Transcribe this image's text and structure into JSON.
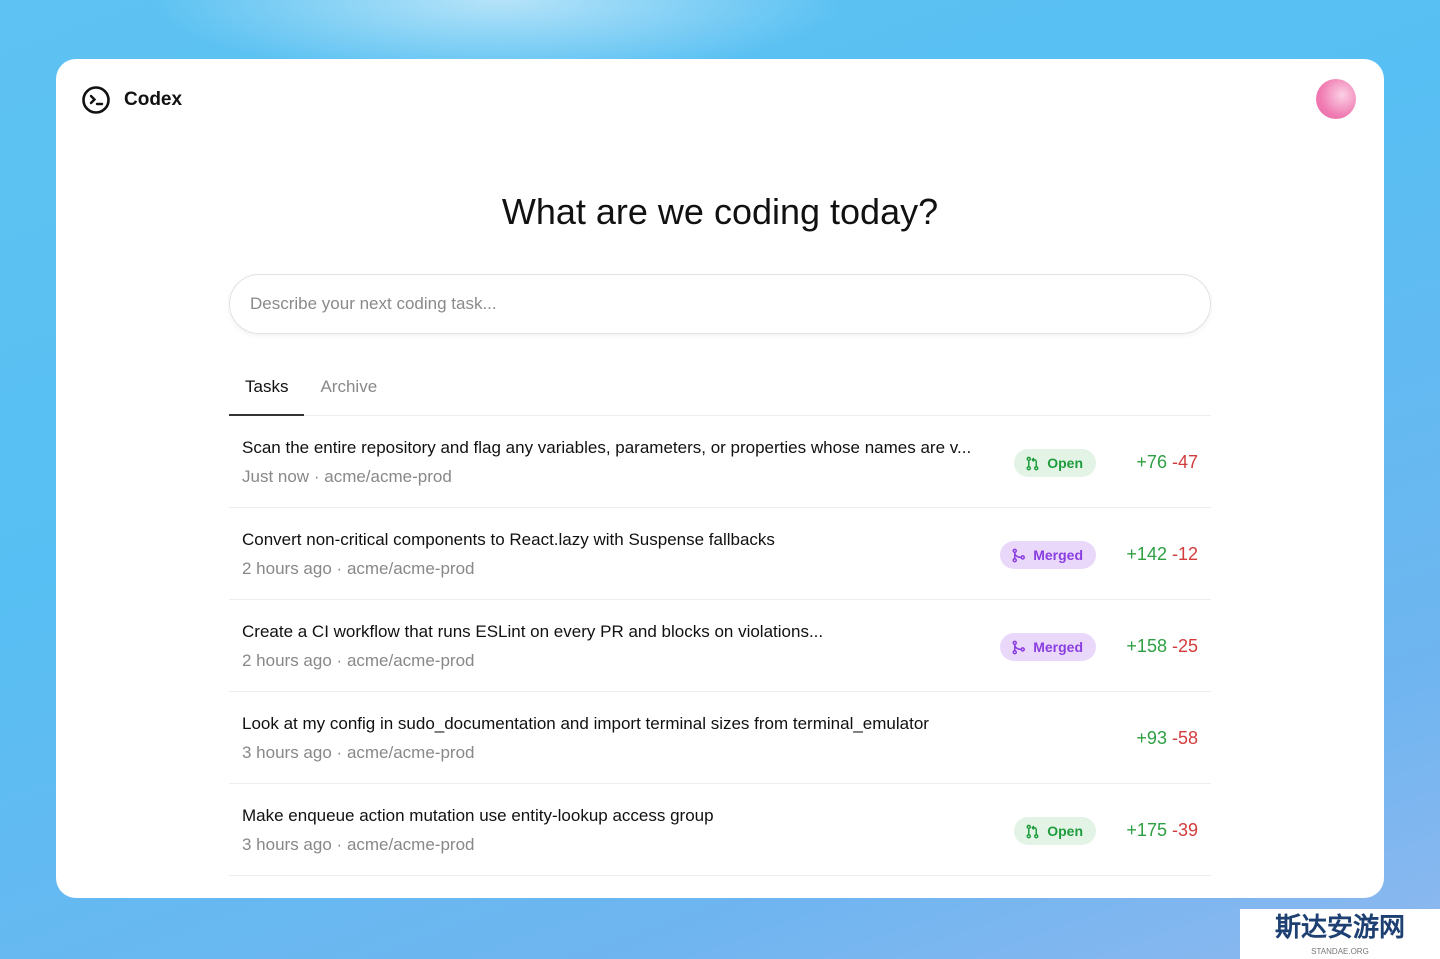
{
  "app": {
    "name": "Codex"
  },
  "headline": "What are we coding today?",
  "prompt": {
    "placeholder": "Describe your next coding task..."
  },
  "tabs": [
    {
      "label": "Tasks",
      "active": true
    },
    {
      "label": "Archive",
      "active": false
    }
  ],
  "tasks": [
    {
      "title": "Scan the entire repository and flag any variables, parameters, or properties whose names are v...",
      "time": "Just now",
      "repo": "acme/acme-prod",
      "status": "Open",
      "additions": "+76",
      "deletions": "-47"
    },
    {
      "title": "Convert non-critical components to React.lazy with Suspense fallbacks",
      "time": "2 hours ago",
      "repo": "acme/acme-prod",
      "status": "Merged",
      "additions": "+142",
      "deletions": "-12"
    },
    {
      "title": "Create a CI workflow that runs ESLint on every PR and blocks on violations...",
      "time": "2 hours ago",
      "repo": "acme/acme-prod",
      "status": "Merged",
      "additions": "+158",
      "deletions": "-25"
    },
    {
      "title": "Look at my config in sudo_documentation and import terminal sizes from terminal_emulator",
      "time": "3 hours ago",
      "repo": "acme/acme-prod",
      "status": "",
      "additions": "+93",
      "deletions": "-58"
    },
    {
      "title": "Make enqueue action mutation use entity-lookup access group",
      "time": "3 hours ago",
      "repo": "acme/acme-prod",
      "status": "Open",
      "additions": "+175",
      "deletions": "-39"
    }
  ],
  "separator": "·",
  "colors": {
    "open": "#1f9d3c",
    "merged": "#8a3ee0",
    "additions": "#2ea043",
    "deletions": "#d23c3c"
  },
  "watermark": {
    "text": "斯达安游网",
    "sub": "STANDAE.ORG"
  }
}
